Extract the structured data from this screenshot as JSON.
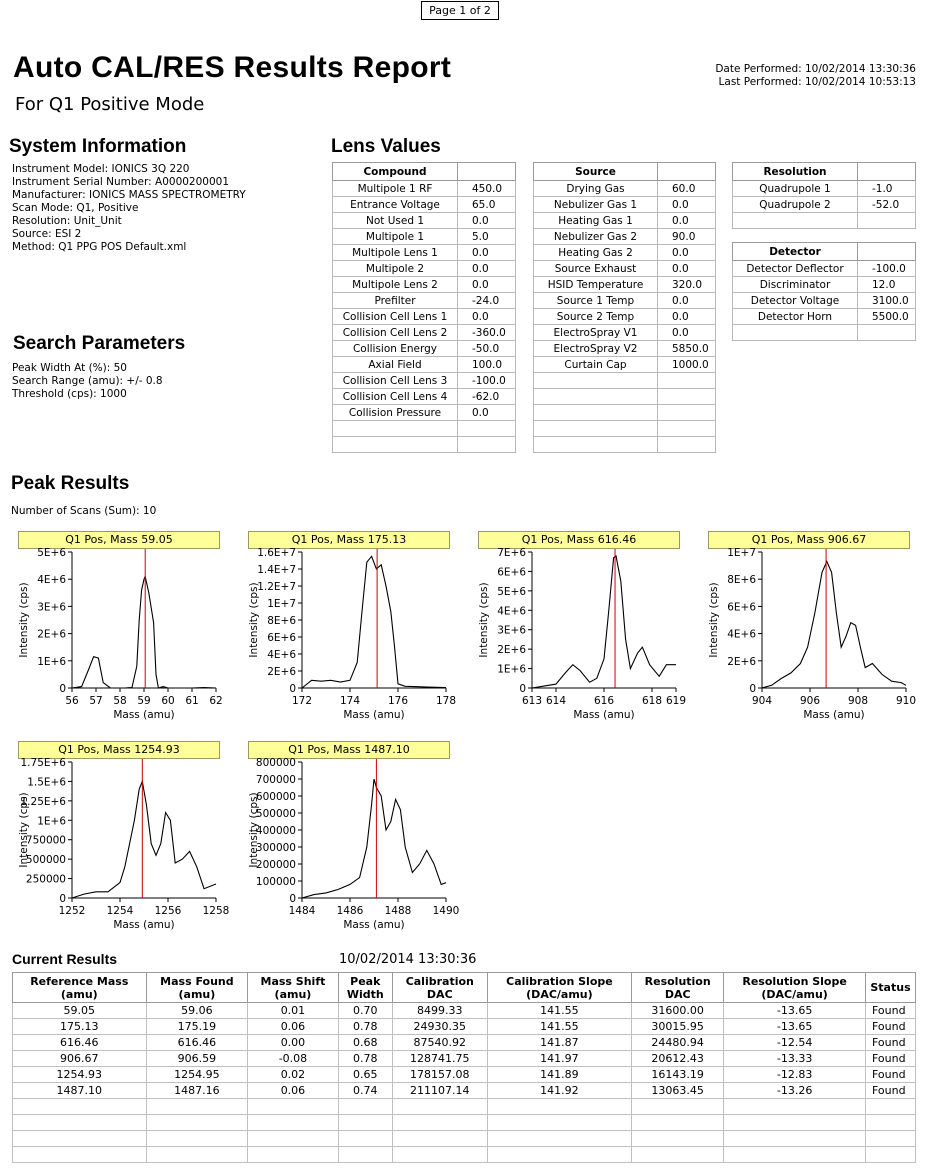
{
  "header": {
    "page": "Page 1 of 2",
    "title": "Auto CAL/RES Results Report",
    "subtitle": "For Q1 Positive Mode",
    "date_performed": "Date Performed: 10/02/2014 13:30:36",
    "last_performed": "Last Performed: 10/02/2014 10:53:13"
  },
  "system": {
    "heading": "System Information",
    "lines": [
      "Instrument Model: IONICS 3Q 220",
      "Instrument Serial Number: A0000200001",
      "Manufacturer: IONICS MASS SPECTROMETRY",
      "Scan Mode: Q1, Positive",
      "Resolution: Unit_Unit",
      "Source: ESI 2",
      "Method: Q1 PPG POS Default.xml"
    ]
  },
  "search": {
    "heading": "Search Parameters",
    "lines": [
      "Peak Width At (%): 50",
      "Search Range (amu): +/- 0.8",
      "Threshold (cps): 1000"
    ]
  },
  "lens": {
    "heading": "Lens Values",
    "compound": {
      "header": "Compound",
      "rows": [
        [
          "Multipole 1 RF",
          "450.0"
        ],
        [
          "Entrance Voltage",
          "65.0"
        ],
        [
          "Not Used 1",
          "0.0"
        ],
        [
          "Multipole 1",
          "5.0"
        ],
        [
          "Multipole Lens 1",
          "0.0"
        ],
        [
          "Multipole 2",
          "0.0"
        ],
        [
          "Multipole Lens 2",
          "0.0"
        ],
        [
          "Prefilter",
          "-24.0"
        ],
        [
          "Collision Cell Lens 1",
          "0.0"
        ],
        [
          "Collision Cell Lens 2",
          "-360.0"
        ],
        [
          "Collision Energy",
          "-50.0"
        ],
        [
          "Axial Field",
          "100.0"
        ],
        [
          "Collision Cell Lens 3",
          "-100.0"
        ],
        [
          "Collision Cell Lens 4",
          "-62.0"
        ],
        [
          "Collision Pressure",
          "0.0"
        ],
        [
          "",
          ""
        ],
        [
          "",
          ""
        ]
      ]
    },
    "source": {
      "header": "Source",
      "rows": [
        [
          "Drying Gas",
          "60.0"
        ],
        [
          "Nebulizer Gas 1",
          "0.0"
        ],
        [
          "Heating Gas 1",
          "0.0"
        ],
        [
          "Nebulizer Gas 2",
          "90.0"
        ],
        [
          "Heating Gas 2",
          "0.0"
        ],
        [
          "Source Exhaust",
          "0.0"
        ],
        [
          "HSID Temperature",
          "320.0"
        ],
        [
          "Source 1 Temp",
          "0.0"
        ],
        [
          "Source 2 Temp",
          "0.0"
        ],
        [
          "ElectroSpray V1",
          "0.0"
        ],
        [
          "ElectroSpray V2",
          "5850.0"
        ],
        [
          "Curtain Cap",
          "1000.0"
        ],
        [
          "",
          ""
        ],
        [
          "",
          ""
        ],
        [
          "",
          ""
        ],
        [
          "",
          ""
        ],
        [
          "",
          ""
        ]
      ]
    },
    "resolution": {
      "header": "Resolution",
      "rows": [
        [
          "Quadrupole 1",
          "-1.0"
        ],
        [
          "Quadrupole 2",
          "-52.0"
        ],
        [
          "",
          ""
        ]
      ]
    },
    "detector": {
      "header": "Detector",
      "rows": [
        [
          "Detector Deflector",
          "-100.0"
        ],
        [
          "Discriminator",
          "12.0"
        ],
        [
          "Detector Voltage",
          "3100.0"
        ],
        [
          "Detector Horn",
          "5500.0"
        ],
        [
          "",
          ""
        ]
      ]
    }
  },
  "peaks": {
    "heading": "Peak Results",
    "scans": "Number of Scans (Sum): 10"
  },
  "chart_data": [
    {
      "type": "line",
      "title": "Q1 Pos, Mass 59.05",
      "xlabel": "Mass (amu)",
      "ylabel": "Intensity (cps)",
      "xlim": [
        56,
        62
      ],
      "ylim": [
        0,
        5000000
      ],
      "xticks": [
        56,
        57,
        58,
        59,
        60,
        61,
        62
      ],
      "xtick_labels": [
        "56",
        "57",
        "58",
        "59",
        "60",
        "61",
        "62"
      ],
      "yticks": [
        0,
        1000000,
        2000000,
        3000000,
        4000000,
        5000000
      ],
      "ytick_labels": [
        "0",
        "1E+6",
        "2E+6",
        "3E+6",
        "4E+6",
        "5E+6"
      ],
      "marker": 59.05,
      "x": [
        56.0,
        56.4,
        56.7,
        56.9,
        57.1,
        57.3,
        57.6,
        57.9,
        58.2,
        58.5,
        58.7,
        58.8,
        58.9,
        59.0,
        59.05,
        59.2,
        59.4,
        59.5,
        59.6,
        59.8,
        60.0,
        60.5,
        61.0,
        61.5,
        62.0
      ],
      "y": [
        0,
        50000,
        700000,
        1150000,
        1100000,
        200000,
        0,
        0,
        0,
        20000,
        800000,
        2500000,
        3600000,
        4000000,
        4100000,
        3500000,
        2400000,
        500000,
        0,
        50000,
        0,
        0,
        0,
        20000,
        0
      ]
    },
    {
      "type": "line",
      "title": "Q1 Pos, Mass 175.13",
      "xlabel": "Mass (amu)",
      "ylabel": "Intensity (cps)",
      "xlim": [
        172,
        178
      ],
      "ylim": [
        0,
        16000000
      ],
      "xticks": [
        172,
        174,
        176,
        178
      ],
      "xtick_labels": [
        "172",
        "174",
        "176",
        "178"
      ],
      "yticks": [
        0,
        2000000,
        4000000,
        6000000,
        8000000,
        10000000,
        12000000,
        14000000,
        16000000
      ],
      "ytick_labels": [
        "0",
        "2E+6",
        "4E+6",
        "6E+6",
        "8E+6",
        "1E+7",
        "1.2E+7",
        "1.4E+7",
        "1.6E+7"
      ],
      "marker": 175.13,
      "x": [
        172.0,
        172.4,
        172.8,
        173.2,
        173.6,
        174.0,
        174.3,
        174.5,
        174.7,
        174.9,
        175.1,
        175.3,
        175.5,
        175.7,
        175.85,
        176.0,
        176.3,
        176.8,
        177.4,
        178.0
      ],
      "y": [
        0,
        900000,
        800000,
        900000,
        700000,
        900000,
        3000000,
        9000000,
        14800000,
        15500000,
        14000000,
        14500000,
        12000000,
        9000000,
        5000000,
        500000,
        200000,
        150000,
        100000,
        50000
      ]
    },
    {
      "type": "line",
      "title": "Q1 Pos, Mass 616.46",
      "xlabel": "Mass (amu)",
      "ylabel": "Intensity (cps)",
      "xlim": [
        613,
        619
      ],
      "ylim": [
        0,
        7000000
      ],
      "xticks": [
        613,
        614,
        616,
        618,
        619
      ],
      "xtick_labels": [
        "613",
        "614",
        "616",
        "618",
        "619"
      ],
      "yticks": [
        0,
        1000000,
        2000000,
        3000000,
        4000000,
        5000000,
        6000000,
        7000000
      ],
      "ytick_labels": [
        "0",
        "1E+6",
        "2E+6",
        "3E+6",
        "4E+6",
        "5E+6",
        "6E+6",
        "7E+6"
      ],
      "marker": 616.46,
      "x": [
        613.0,
        613.5,
        614.0,
        614.4,
        614.7,
        615.0,
        615.4,
        615.7,
        616.0,
        616.2,
        616.4,
        616.5,
        616.7,
        616.9,
        617.1,
        617.4,
        617.6,
        617.9,
        618.3,
        618.6,
        619.0
      ],
      "y": [
        0,
        100000,
        200000,
        800000,
        1200000,
        900000,
        300000,
        500000,
        1500000,
        4000000,
        6700000,
        6800000,
        5500000,
        2500000,
        1000000,
        1800000,
        2100000,
        1200000,
        600000,
        1200000,
        1200000
      ]
    },
    {
      "type": "line",
      "title": "Q1 Pos, Mass 906.67",
      "xlabel": "Mass (amu)",
      "ylabel": "Intensity (cps)",
      "xlim": [
        904,
        910
      ],
      "ylim": [
        0,
        10000000
      ],
      "xticks": [
        904,
        906,
        908,
        910
      ],
      "xtick_labels": [
        "904",
        "906",
        "908",
        "910"
      ],
      "yticks": [
        0,
        2000000,
        4000000,
        6000000,
        8000000,
        10000000
      ],
      "ytick_labels": [
        "0",
        "2E+6",
        "4E+6",
        "6E+6",
        "8E+6",
        "1E+7"
      ],
      "marker": 906.67,
      "x": [
        904.0,
        904.4,
        904.8,
        905.2,
        905.6,
        905.9,
        906.2,
        906.5,
        906.7,
        906.9,
        907.1,
        907.3,
        907.5,
        907.7,
        907.9,
        908.1,
        908.3,
        908.6,
        909.0,
        909.4,
        909.8,
        910.0
      ],
      "y": [
        0,
        200000,
        700000,
        1100000,
        1800000,
        3000000,
        5500000,
        8500000,
        9300000,
        8500000,
        5500000,
        3000000,
        3800000,
        4800000,
        4600000,
        3000000,
        1500000,
        1800000,
        1000000,
        500000,
        400000,
        200000
      ]
    },
    {
      "type": "line",
      "title": "Q1 Pos, Mass 1254.93",
      "xlabel": "Mass (amu)",
      "ylabel": "Intensity (cps)",
      "xlim": [
        1252,
        1258
      ],
      "ylim": [
        0,
        1750000
      ],
      "xticks": [
        1252,
        1254,
        1256,
        1258
      ],
      "xtick_labels": [
        "1252",
        "1254",
        "1256",
        "1258"
      ],
      "yticks": [
        0,
        250000,
        500000,
        750000,
        1000000,
        1250000,
        1500000,
        1750000
      ],
      "ytick_labels": [
        "0",
        "250000",
        "500000",
        "750000",
        "1E+6",
        "1.25E+6",
        "1.5E+6",
        "1.75E+6"
      ],
      "marker": 1254.93,
      "x": [
        1252.0,
        1252.5,
        1253.0,
        1253.5,
        1254.0,
        1254.2,
        1254.4,
        1254.6,
        1254.8,
        1254.93,
        1255.1,
        1255.3,
        1255.5,
        1255.7,
        1255.9,
        1256.1,
        1256.3,
        1256.6,
        1256.9,
        1257.2,
        1257.5,
        1258.0
      ],
      "y": [
        0,
        50000,
        80000,
        80000,
        200000,
        400000,
        700000,
        1000000,
        1400000,
        1500000,
        1200000,
        700000,
        550000,
        700000,
        1100000,
        1000000,
        450000,
        500000,
        600000,
        400000,
        120000,
        180000
      ]
    },
    {
      "type": "line",
      "title": "Q1 Pos, Mass 1487.10",
      "xlabel": "Mass (amu)",
      "ylabel": "Intensity (cps)",
      "xlim": [
        1484,
        1490
      ],
      "ylim": [
        0,
        800000
      ],
      "xticks": [
        1484,
        1486,
        1488,
        1490
      ],
      "xtick_labels": [
        "1484",
        "1486",
        "1488",
        "1490"
      ],
      "yticks": [
        0,
        100000,
        200000,
        300000,
        400000,
        500000,
        600000,
        700000,
        800000
      ],
      "ytick_labels": [
        "0",
        "100000",
        "200000",
        "300000",
        "400000",
        "500000",
        "600000",
        "700000",
        "800000"
      ],
      "marker": 1487.1,
      "x": [
        1484.0,
        1484.5,
        1485.0,
        1485.5,
        1486.0,
        1486.4,
        1486.7,
        1486.9,
        1487.0,
        1487.1,
        1487.3,
        1487.5,
        1487.7,
        1487.9,
        1488.1,
        1488.3,
        1488.6,
        1488.9,
        1489.2,
        1489.5,
        1489.8,
        1490.0
      ],
      "y": [
        0,
        20000,
        30000,
        50000,
        80000,
        120000,
        300000,
        550000,
        700000,
        650000,
        600000,
        400000,
        450000,
        580000,
        520000,
        300000,
        150000,
        200000,
        280000,
        200000,
        80000,
        90000
      ]
    }
  ],
  "current": {
    "heading": "Current Results",
    "timestamp": "10/02/2014 13:30:36",
    "columns": [
      [
        "Reference Mass",
        "(amu)"
      ],
      [
        "Mass Found",
        "(amu)"
      ],
      [
        "Mass Shift",
        "(amu)"
      ],
      [
        "Peak",
        "Width"
      ],
      [
        "Calibration",
        "DAC"
      ],
      [
        "Calibration Slope",
        "(DAC/amu)"
      ],
      [
        "Resolution",
        "DAC"
      ],
      [
        "Resolution Slope",
        "(DAC/amu)"
      ],
      [
        "Status",
        ""
      ]
    ],
    "rows": [
      [
        "59.05",
        "59.06",
        "0.01",
        "0.70",
        "8499.33",
        "141.55",
        "31600.00",
        "-13.65",
        "Found"
      ],
      [
        "175.13",
        "175.19",
        "0.06",
        "0.78",
        "24930.35",
        "141.55",
        "30015.95",
        "-13.65",
        "Found"
      ],
      [
        "616.46",
        "616.46",
        "0.00",
        "0.68",
        "87540.92",
        "141.87",
        "24480.94",
        "-12.54",
        "Found"
      ],
      [
        "906.67",
        "906.59",
        "-0.08",
        "0.78",
        "128741.75",
        "141.97",
        "20612.43",
        "-13.33",
        "Found"
      ],
      [
        "1254.93",
        "1254.95",
        "0.02",
        "0.65",
        "178157.08",
        "141.89",
        "16143.19",
        "-12.83",
        "Found"
      ],
      [
        "1487.10",
        "1487.16",
        "0.06",
        "0.74",
        "211107.14",
        "141.92",
        "13063.45",
        "-13.26",
        "Found"
      ],
      [
        "",
        "",
        "",
        "",
        "",
        "",
        "",
        "",
        ""
      ],
      [
        "",
        "",
        "",
        "",
        "",
        "",
        "",
        "",
        ""
      ],
      [
        "",
        "",
        "",
        "",
        "",
        "",
        "",
        "",
        ""
      ],
      [
        "",
        "",
        "",
        "",
        "",
        "",
        "",
        "",
        ""
      ]
    ]
  },
  "colors": {
    "chart_tab_bg": "#ffff99",
    "marker_line": "#d00000",
    "trace": "#000000"
  }
}
